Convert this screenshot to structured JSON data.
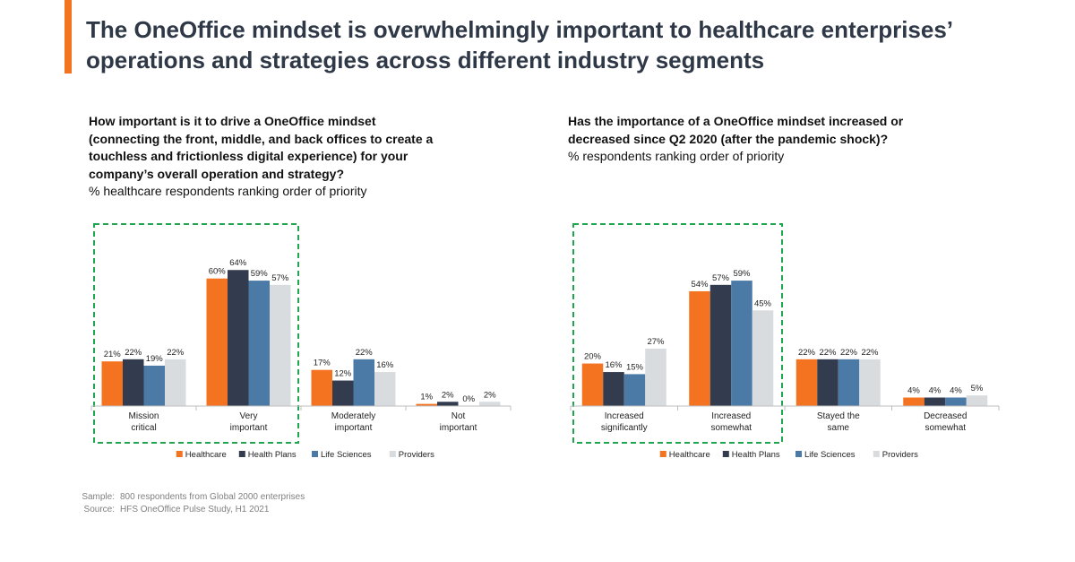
{
  "headline": "The OneOffice mindset is overwhelmingly important to healthcare enterprises’ operations and strategies across different industry segments",
  "colors": {
    "accent": "#f47321",
    "highlight_box": "#21a650",
    "series": [
      "#f47321",
      "#333c4e",
      "#4a7aa5",
      "#d9dcdf"
    ]
  },
  "left": {
    "question": "How important is it to drive a OneOffice mindset (connecting the front, middle, and back offices to create a touchless and frictionless digital experience) for your company’s overall operation and strategy?",
    "subtitle": "% healthcare respondents ranking order of priority"
  },
  "right": {
    "question": "Has the importance of a OneOffice mindset increased or decreased since Q2 2020 (after the pandemic shock)?",
    "subtitle": "% respondents ranking order of priority"
  },
  "footer": {
    "sample_label": "Sample:",
    "sample_text": "800 respondents from Global 2000 enterprises",
    "source_label": "Source:",
    "source_text": "HFS OneOffice Pulse Study, H1 2021"
  },
  "chart_data": [
    {
      "type": "bar",
      "categories": [
        "Mission\ncritical",
        "Very\nimportant",
        "Moderately\nimportant",
        "Not\nimportant"
      ],
      "series": [
        {
          "name": "Healthcare",
          "values": [
            21,
            60,
            17,
            1
          ]
        },
        {
          "name": "Health Plans",
          "values": [
            22,
            64,
            12,
            2
          ]
        },
        {
          "name": "Life Sciences",
          "values": [
            19,
            59,
            22,
            0
          ]
        },
        {
          "name": "Providers",
          "values": [
            22,
            57,
            16,
            2
          ]
        }
      ],
      "value_suffix": "%",
      "ylim": [
        0,
        70
      ],
      "legend": "bottom",
      "highlighted_categories": [
        0,
        1
      ]
    },
    {
      "type": "bar",
      "categories": [
        "Increased\nsignificantly",
        "Increased\nsomewhat",
        "Stayed the\nsame",
        "Decreased\nsomewhat"
      ],
      "series": [
        {
          "name": "Healthcare",
          "values": [
            20,
            54,
            22,
            4
          ]
        },
        {
          "name": "Health Plans",
          "values": [
            16,
            57,
            22,
            4
          ]
        },
        {
          "name": "Life Sciences",
          "values": [
            15,
            59,
            22,
            4
          ]
        },
        {
          "name": "Providers",
          "values": [
            27,
            45,
            22,
            5
          ]
        }
      ],
      "value_suffix": "%",
      "ylim": [
        0,
        70
      ],
      "legend": "bottom",
      "highlighted_categories": [
        0,
        1
      ]
    }
  ]
}
